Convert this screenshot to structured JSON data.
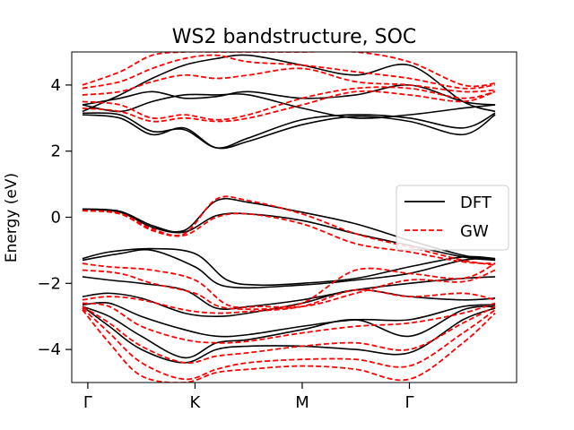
{
  "chart_data": {
    "type": "line",
    "title": "WS2 bandstructure, SOC",
    "xlabel": "",
    "ylabel": "Energy (eV)",
    "ylim": [
      -5,
      5
    ],
    "x_ticks": [
      {
        "label": "Γ",
        "pos": 0.0
      },
      {
        "label": "K",
        "pos": 1.0
      },
      {
        "label": "M",
        "pos": 2.0
      },
      {
        "label": "Γ",
        "pos": 3.0
      }
    ],
    "xlim": [
      -0.15,
      4.0
    ],
    "y_ticks": [
      -4,
      -2,
      0,
      2,
      4
    ],
    "y_tick_labels": [
      "−4",
      "−2",
      "0",
      "2",
      "4"
    ],
    "grid": false,
    "legend_position": "right",
    "colors": {
      "DFT": "#000000",
      "GW": "#ff0000"
    },
    "series": [
      {
        "name": "DFT",
        "style": "solid",
        "color": "#000000",
        "bands": [
          {
            "x": [
              -0.05,
              0.3,
              0.6,
              0.9,
              1.2,
              1.5,
              2.0,
              2.5,
              3.0,
              3.5,
              3.8
            ],
            "y": [
              0.25,
              0.15,
              -0.3,
              -0.45,
              0.05,
              0.1,
              -0.1,
              -0.5,
              -0.85,
              -1.2,
              -1.3
            ]
          },
          {
            "x": [
              -0.05,
              0.3,
              0.6,
              0.9,
              1.2,
              1.5,
              2.0,
              2.5,
              3.0,
              3.5,
              3.8
            ],
            "y": [
              0.25,
              0.18,
              -0.25,
              -0.4,
              0.5,
              0.45,
              0.15,
              -0.2,
              -0.7,
              -1.15,
              -1.3
            ]
          },
          {
            "x": [
              -0.05,
              0.2,
              0.6,
              1.0,
              1.3,
              1.6,
              2.0,
              2.5,
              3.0,
              3.5,
              3.8
            ],
            "y": [
              -1.25,
              -1.05,
              -0.95,
              -1.1,
              -1.9,
              -2.05,
              -2.0,
              -1.85,
              -1.5,
              -1.2,
              -1.25
            ]
          },
          {
            "x": [
              -0.05,
              0.3,
              0.6,
              1.0,
              1.3,
              2.0,
              2.5,
              3.0,
              3.5,
              3.8
            ],
            "y": [
              -1.3,
              -1.1,
              -1.0,
              -1.5,
              -2.1,
              -2.05,
              -1.9,
              -1.7,
              -1.3,
              -1.25
            ]
          },
          {
            "x": [
              -0.05,
              0.2,
              0.5,
              0.9,
              1.2,
              1.5,
              2.0,
              2.5,
              3.0,
              3.5,
              3.8
            ],
            "y": [
              -1.8,
              -1.9,
              -2.0,
              -2.2,
              -2.75,
              -2.7,
              -2.5,
              -2.2,
              -2.0,
              -1.85,
              -1.8
            ]
          },
          {
            "x": [
              -0.05,
              0.2,
              0.5,
              0.9,
              1.2,
              1.5,
              2.0,
              2.5,
              3.0,
              3.5,
              3.8
            ],
            "y": [
              -2.4,
              -2.3,
              -2.45,
              -2.9,
              -3.0,
              -2.9,
              -2.6,
              -2.2,
              -2.4,
              -2.5,
              -2.45
            ]
          },
          {
            "x": [
              -0.05,
              0.2,
              0.5,
              0.9,
              1.2,
              1.5,
              2.0,
              2.5,
              3.0,
              3.5,
              3.8
            ],
            "y": [
              -2.65,
              -2.6,
              -3.0,
              -3.4,
              -3.6,
              -3.55,
              -3.3,
              -3.1,
              -3.1,
              -2.7,
              -2.65
            ]
          },
          {
            "x": [
              -0.05,
              0.2,
              0.5,
              0.9,
              1.2,
              1.5,
              2.0,
              2.5,
              3.0,
              3.5,
              3.8
            ],
            "y": [
              -2.7,
              -3.0,
              -3.6,
              -4.25,
              -3.8,
              -3.7,
              -3.4,
              -3.1,
              -3.6,
              -2.8,
              -2.7
            ]
          },
          {
            "x": [
              -0.05,
              0.2,
              0.5,
              0.9,
              1.2,
              1.5,
              2.0,
              2.5,
              3.0,
              3.5,
              3.8
            ],
            "y": [
              -2.7,
              -3.3,
              -4.0,
              -4.4,
              -4.0,
              -3.9,
              -3.9,
              -4.0,
              -4.1,
              -3.1,
              -2.75
            ]
          },
          {
            "x": [
              -0.05,
              0.3,
              0.6,
              0.9,
              1.2,
              1.5,
              2.0,
              2.5,
              3.0,
              3.5,
              3.8
            ],
            "y": [
              3.1,
              3.0,
              2.5,
              2.7,
              2.1,
              2.3,
              2.8,
              3.05,
              2.9,
              2.5,
              3.1
            ]
          },
          {
            "x": [
              -0.05,
              0.3,
              0.6,
              0.9,
              1.2,
              1.5,
              2.0,
              2.5,
              3.0,
              3.5,
              3.8
            ],
            "y": [
              3.15,
              3.1,
              2.6,
              2.65,
              2.1,
              2.4,
              2.95,
              3.1,
              3.0,
              2.7,
              3.15
            ]
          },
          {
            "x": [
              -0.05,
              0.3,
              0.6,
              0.9,
              1.2,
              1.5,
              2.0,
              2.5,
              3.0,
              3.5,
              3.8
            ],
            "y": [
              3.4,
              3.2,
              3.5,
              3.7,
              3.7,
              3.7,
              3.3,
              3.0,
              3.1,
              3.3,
              3.4
            ]
          },
          {
            "x": [
              -0.05,
              0.3,
              0.6,
              0.9,
              1.2,
              1.5,
              2.0,
              2.5,
              3.0,
              3.5,
              3.8
            ],
            "y": [
              3.4,
              3.6,
              3.8,
              3.6,
              3.65,
              3.8,
              3.6,
              3.7,
              4.0,
              3.5,
              3.4
            ]
          },
          {
            "x": [
              -0.05,
              0.3,
              0.6,
              0.9,
              1.2,
              1.5,
              2.0,
              2.5,
              3.0,
              3.5,
              3.8
            ],
            "y": [
              3.2,
              3.7,
              4.2,
              4.6,
              4.8,
              4.9,
              4.6,
              4.3,
              4.6,
              3.5,
              3.2
            ]
          }
        ]
      },
      {
        "name": "GW",
        "style": "dashed",
        "color": "#ff0000",
        "bands": [
          {
            "x": [
              -0.05,
              0.3,
              0.6,
              0.9,
              1.2,
              1.5,
              2.0,
              2.5,
              3.0,
              3.5,
              3.8
            ],
            "y": [
              0.2,
              0.1,
              -0.4,
              -0.55,
              0.0,
              0.1,
              -0.2,
              -0.8,
              -1.05,
              -1.35,
              -1.4
            ]
          },
          {
            "x": [
              -0.05,
              0.3,
              0.6,
              0.9,
              1.2,
              1.5,
              2.0,
              2.5,
              3.0,
              3.5,
              3.8
            ],
            "y": [
              0.2,
              0.12,
              -0.35,
              -0.5,
              0.55,
              0.5,
              0.1,
              -0.5,
              -0.9,
              -1.3,
              -1.45
            ]
          },
          {
            "x": [
              -0.05,
              0.2,
              0.6,
              1.0,
              1.3,
              1.6,
              2.0,
              2.5,
              3.0,
              3.5,
              3.8
            ],
            "y": [
              -1.4,
              -1.5,
              -1.6,
              -1.9,
              -2.65,
              -2.7,
              -2.6,
              -1.6,
              -1.7,
              -1.85,
              -1.4
            ]
          },
          {
            "x": [
              -0.05,
              0.3,
              0.6,
              1.0,
              1.3,
              2.0,
              2.5,
              3.0,
              3.5,
              3.8
            ],
            "y": [
              -1.6,
              -1.7,
              -2.0,
              -2.3,
              -2.75,
              -2.7,
              -2.3,
              -1.9,
              -1.95,
              -1.6
            ]
          },
          {
            "x": [
              -0.05,
              0.2,
              0.5,
              0.9,
              1.2,
              1.5,
              2.0,
              2.5,
              3.0,
              3.5,
              3.8
            ],
            "y": [
              -2.5,
              -2.4,
              -2.5,
              -2.8,
              -2.9,
              -2.85,
              -2.7,
              -2.2,
              -2.4,
              -2.3,
              -2.5
            ]
          },
          {
            "x": [
              -0.05,
              0.2,
              0.5,
              0.9,
              1.2,
              1.5,
              2.0,
              2.5,
              3.0,
              3.5,
              3.8
            ],
            "y": [
              -2.6,
              -2.7,
              -3.3,
              -3.7,
              -3.8,
              -3.75,
              -3.5,
              -3.3,
              -3.2,
              -2.9,
              -2.6
            ]
          },
          {
            "x": [
              -0.05,
              0.2,
              0.5,
              0.9,
              1.2,
              1.5,
              2.0,
              2.5,
              3.0,
              3.5,
              3.8
            ],
            "y": [
              -2.7,
              -3.2,
              -3.9,
              -4.4,
              -4.2,
              -4.1,
              -3.9,
              -3.8,
              -4.0,
              -3.2,
              -2.7
            ]
          },
          {
            "x": [
              -0.05,
              0.2,
              0.5,
              0.9,
              1.2,
              1.5,
              2.0,
              2.5,
              3.0,
              3.5,
              3.8
            ],
            "y": [
              -2.75,
              -3.5,
              -4.4,
              -4.9,
              -4.6,
              -4.4,
              -4.3,
              -4.3,
              -4.5,
              -3.5,
              -2.8
            ]
          },
          {
            "x": [
              -0.05,
              0.2,
              0.5,
              0.9,
              1.2,
              1.5,
              2.0,
              2.5,
              3.0,
              3.5,
              3.8
            ],
            "y": [
              -2.8,
              -3.8,
              -4.8,
              -5.0,
              -4.7,
              -4.6,
              -4.5,
              -4.6,
              -4.9,
              -3.8,
              -2.9
            ]
          },
          {
            "x": [
              -0.05,
              0.3,
              0.6,
              0.9,
              1.2,
              1.5,
              2.0,
              2.5,
              3.0,
              3.5,
              3.8
            ],
            "y": [
              3.3,
              3.2,
              2.9,
              3.0,
              2.9,
              3.0,
              3.4,
              3.8,
              3.7,
              3.5,
              3.8
            ]
          },
          {
            "x": [
              -0.05,
              0.3,
              0.6,
              0.9,
              1.2,
              1.5,
              2.0,
              2.5,
              3.0,
              3.5,
              3.8
            ],
            "y": [
              3.5,
              3.4,
              3.0,
              3.1,
              2.95,
              3.1,
              3.6,
              3.9,
              3.9,
              3.6,
              3.8
            ]
          },
          {
            "x": [
              -0.05,
              0.3,
              0.6,
              0.9,
              1.2,
              1.5,
              2.0,
              2.5,
              3.0,
              3.5,
              3.8
            ],
            "y": [
              3.7,
              3.8,
              4.1,
              4.3,
              4.2,
              4.3,
              4.5,
              4.1,
              4.0,
              3.8,
              3.85
            ]
          },
          {
            "x": [
              -0.05,
              0.3,
              0.6,
              0.9,
              1.2,
              1.5,
              2.0,
              2.5,
              3.0,
              3.5,
              3.8
            ],
            "y": [
              3.9,
              4.1,
              4.5,
              4.8,
              4.9,
              4.7,
              4.6,
              4.4,
              4.2,
              3.9,
              4.0
            ]
          },
          {
            "x": [
              -0.05,
              0.3,
              0.6,
              0.9,
              1.2,
              1.5,
              2.0,
              2.5,
              3.0,
              3.5,
              3.8
            ],
            "y": [
              4.0,
              4.4,
              4.9,
              5.0,
              5.0,
              5.0,
              5.0,
              5.0,
              4.7,
              4.0,
              4.05
            ]
          }
        ]
      }
    ]
  }
}
